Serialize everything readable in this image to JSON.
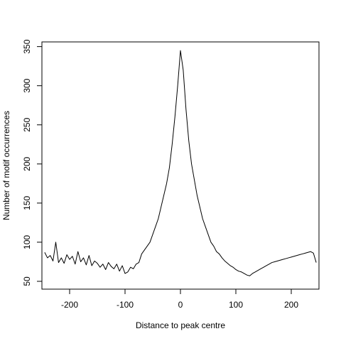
{
  "chart_data": {
    "type": "line",
    "title": "",
    "xlabel": "Distance to peak centre",
    "ylabel": "Number of motif occurrences",
    "xlim": [
      -250,
      250
    ],
    "ylim": [
      40,
      356
    ],
    "xticks": [
      -200,
      -100,
      0,
      100,
      200
    ],
    "yticks": [
      50,
      100,
      150,
      200,
      250,
      300,
      350
    ],
    "grid": false,
    "legend": "none",
    "line_color": "#000000",
    "series": [
      {
        "x": [
          -245,
          -240,
          -235,
          -230,
          -225,
          -220,
          -215,
          -210,
          -205,
          -200,
          -195,
          -190,
          -185,
          -180,
          -175,
          -170,
          -165,
          -160,
          -155,
          -150,
          -145,
          -140,
          -135,
          -130,
          -125,
          -120,
          -115,
          -110,
          -105,
          -100,
          -95,
          -90,
          -85,
          -80,
          -75,
          -70,
          -65,
          -60,
          -55,
          -50,
          -45,
          -40,
          -35,
          -30,
          -25,
          -20,
          -15,
          -10,
          -5,
          0,
          5,
          10,
          15,
          20,
          25,
          30,
          35,
          40,
          45,
          50,
          55,
          60,
          65,
          70,
          75,
          80,
          85,
          90,
          95,
          100,
          105,
          110,
          115,
          120,
          125,
          130,
          135,
          140,
          145,
          150,
          155,
          160,
          165,
          170,
          175,
          180,
          185,
          190,
          195,
          200,
          205,
          210,
          215,
          220,
          225,
          230,
          235,
          240,
          245
        ],
        "values": [
          87,
          80,
          83,
          76,
          100,
          74,
          80,
          73,
          84,
          78,
          82,
          72,
          88,
          75,
          80,
          71,
          83,
          70,
          76,
          73,
          68,
          72,
          65,
          74,
          69,
          66,
          72,
          63,
          70,
          60,
          62,
          68,
          66,
          72,
          74,
          85,
          90,
          95,
          100,
          110,
          120,
          130,
          145,
          160,
          175,
          195,
          225,
          260,
          300,
          345,
          320,
          270,
          230,
          200,
          180,
          160,
          145,
          130,
          120,
          110,
          100,
          95,
          88,
          85,
          80,
          76,
          73,
          70,
          68,
          65,
          63,
          62,
          60,
          58,
          57,
          60,
          62,
          64,
          66,
          68,
          70,
          72,
          74,
          75,
          76,
          77,
          78,
          79,
          80,
          81,
          82,
          83,
          84,
          85,
          86,
          87,
          88,
          86,
          74
        ]
      }
    ]
  }
}
